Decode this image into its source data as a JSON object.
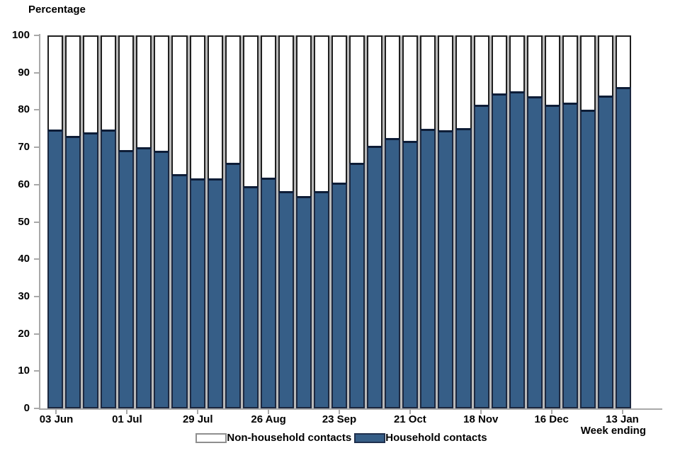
{
  "colors": {
    "household_fill": "#365e87",
    "household_border": "#1c2840",
    "household_top_edge": "#0e1d37",
    "non_household_fill": "#ffffff",
    "non_household_border": "#1f1f1f",
    "axis_line": "#a9a9a9",
    "text": "#000000"
  },
  "legend": {
    "items": [
      {
        "label": "Non-household contacts",
        "swatch": "white"
      },
      {
        "label": "Household contacts",
        "swatch": "blue"
      }
    ]
  },
  "chart_data": {
    "type": "bar",
    "subtype": "stacked-percentage",
    "title": "",
    "ylabel": "Percentage",
    "xlabel": "Week ending",
    "ylim": [
      0,
      100
    ],
    "yticks": [
      0,
      10,
      20,
      30,
      40,
      50,
      60,
      70,
      80,
      90,
      100
    ],
    "grid": false,
    "legend_position": "bottom-center",
    "n_bars": 33,
    "x_tick_labels": [
      "03 Jun",
      "01 Jul",
      "29 Jul",
      "26 Aug",
      "23 Sep",
      "21 Oct",
      "18 Nov",
      "16 Dec",
      "13 Jan"
    ],
    "x_tick_bar_indices": [
      0,
      4,
      8,
      12,
      16,
      20,
      24,
      28,
      32
    ],
    "stack_total": 100,
    "series": [
      {
        "name": "Household contacts",
        "color": "#365e87",
        "values": [
          74.8,
          73.0,
          74.0,
          74.7,
          69.3,
          70.0,
          69.0,
          62.9,
          61.7,
          61.7,
          65.9,
          59.5,
          61.8,
          58.2,
          57.0,
          58.2,
          60.5,
          65.8,
          70.4,
          72.4,
          71.8,
          74.9,
          74.5,
          75.1,
          81.5,
          84.5,
          85.0,
          83.6,
          81.4,
          82.0,
          80.1,
          83.9,
          86.2
        ]
      },
      {
        "name": "Non-household contacts",
        "color": "#ffffff",
        "values": [
          25.2,
          27.0,
          26.0,
          25.3,
          30.7,
          30.0,
          31.0,
          37.1,
          38.3,
          38.3,
          34.1,
          40.5,
          38.2,
          41.8,
          43.0,
          41.8,
          39.5,
          34.2,
          29.6,
          27.6,
          28.2,
          25.1,
          25.5,
          24.9,
          18.5,
          15.5,
          15.0,
          16.4,
          18.6,
          18.0,
          19.9,
          16.1,
          13.8
        ]
      }
    ]
  }
}
